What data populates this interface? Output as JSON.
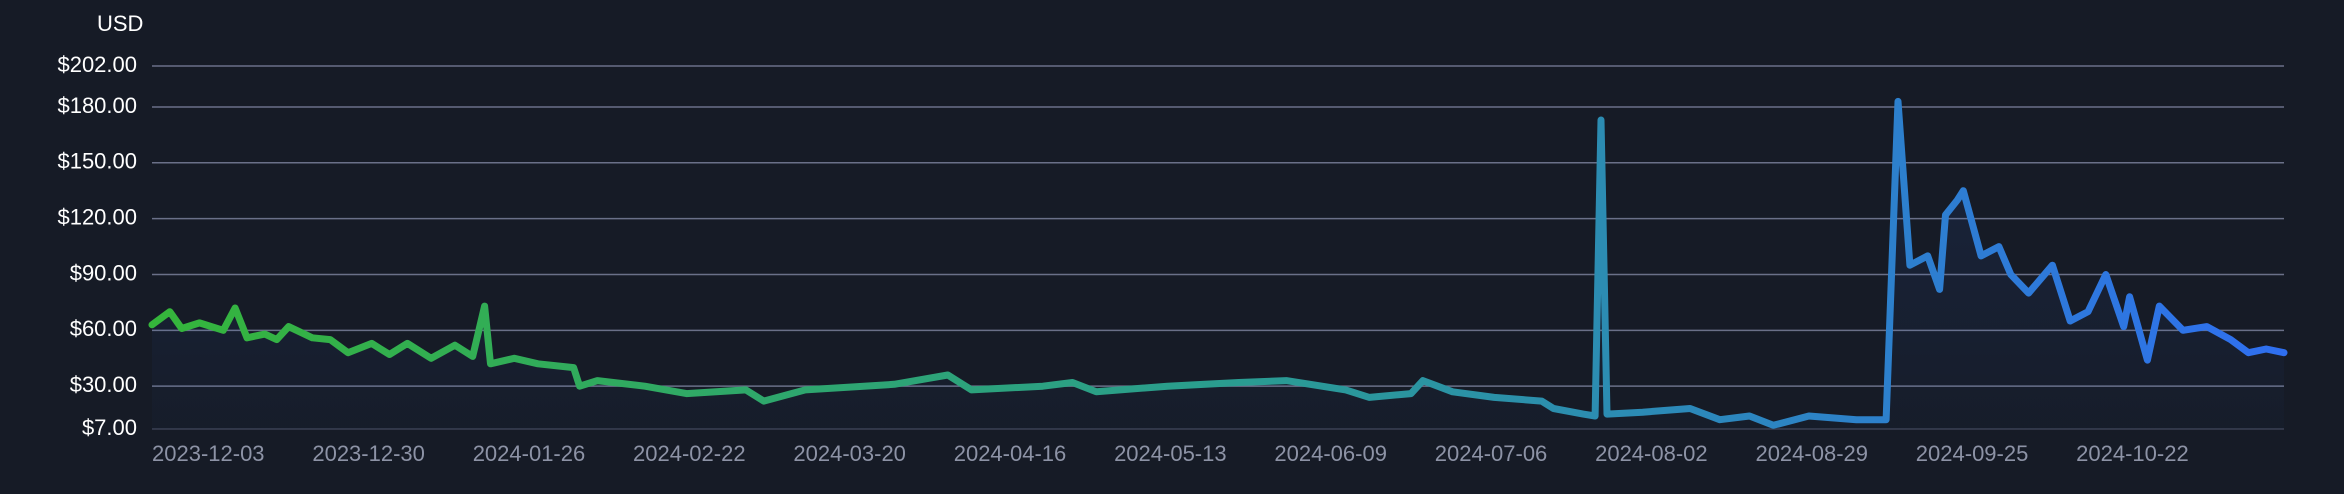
{
  "chart_data": {
    "type": "line",
    "y_axis_label": "USD",
    "x": [
      "2023-12-03",
      "2023-12-06",
      "2023-12-08",
      "2023-12-11",
      "2023-12-15",
      "2023-12-17",
      "2023-12-19",
      "2023-12-22",
      "2023-12-24",
      "2023-12-26",
      "2023-12-30",
      "2024-01-02",
      "2024-01-05",
      "2024-01-09",
      "2024-01-12",
      "2024-01-15",
      "2024-01-19",
      "2024-01-23",
      "2024-01-26",
      "2024-01-28",
      "2024-01-29",
      "2024-02-02",
      "2024-02-06",
      "2024-02-12",
      "2024-02-13",
      "2024-02-16",
      "2024-02-24",
      "2024-03-02",
      "2024-03-12",
      "2024-03-15",
      "2024-03-22",
      "2024-04-06",
      "2024-04-15",
      "2024-04-19",
      "2024-05-01",
      "2024-05-06",
      "2024-05-10",
      "2024-05-22",
      "2024-06-03",
      "2024-06-11",
      "2024-06-21",
      "2024-06-25",
      "2024-07-02",
      "2024-07-04",
      "2024-07-09",
      "2024-07-16",
      "2024-07-24",
      "2024-07-26",
      "2024-07-31",
      "2024-08-02",
      "2024-08-03",
      "2024-08-04",
      "2024-08-10",
      "2024-08-18",
      "2024-08-23",
      "2024-08-28",
      "2024-09-01",
      "2024-09-07",
      "2024-09-15",
      "2024-09-20",
      "2024-09-22",
      "2024-09-24",
      "2024-09-27",
      "2024-09-29",
      "2024-09-30",
      "2024-10-02",
      "2024-10-03",
      "2024-10-06",
      "2024-10-09",
      "2024-10-11",
      "2024-10-14",
      "2024-10-18",
      "2024-10-21",
      "2024-10-24",
      "2024-10-27",
      "2024-10-30",
      "2024-10-31",
      "2024-11-03",
      "2024-11-05",
      "2024-11-09",
      "2024-11-13",
      "2024-11-17",
      "2024-11-20",
      "2024-11-23",
      "2024-11-26"
    ],
    "series": [
      {
        "color_stops": [
          "#35b53b",
          "#2a9d8f",
          "#2f6ff0"
        ],
        "values": [
          63,
          70,
          61,
          64,
          60,
          72,
          56,
          58,
          55,
          62,
          56,
          55,
          48,
          53,
          47,
          53,
          45,
          52,
          46,
          73,
          42,
          45,
          42,
          40,
          30,
          33,
          30,
          26,
          28,
          22,
          28,
          31,
          36,
          28,
          30,
          32,
          27,
          30,
          32,
          33,
          28,
          24,
          26,
          33,
          27,
          24,
          22,
          18,
          15,
          14,
          173,
          15,
          16,
          18,
          12,
          14,
          9,
          14,
          12,
          12,
          183,
          95,
          100,
          82,
          122,
          130,
          135,
          100,
          105,
          90,
          80,
          95,
          65,
          70,
          90,
          62,
          78,
          44,
          73,
          60,
          62,
          55,
          48,
          50,
          48
        ]
      }
    ],
    "xlim": [
      "2023-12-03",
      "2024-11-26"
    ],
    "xticks": [
      "2023-12-03",
      "2023-12-30",
      "2024-01-26",
      "2024-02-22",
      "2024-03-20",
      "2024-04-16",
      "2024-05-13",
      "2024-06-09",
      "2024-07-06",
      "2024-08-02",
      "2024-08-29",
      "2024-09-25",
      "2024-10-22"
    ],
    "ylim": [
      7,
      202
    ],
    "yticks": [
      {
        "value": 7,
        "label": "$7.00"
      },
      {
        "value": 30,
        "label": "$30.00"
      },
      {
        "value": 60,
        "label": "$60.00"
      },
      {
        "value": 90,
        "label": "$90.00"
      },
      {
        "value": 120,
        "label": "$120.00"
      },
      {
        "value": 150,
        "label": "$150.00"
      },
      {
        "value": 180,
        "label": "$180.00"
      },
      {
        "value": 202,
        "label": "$202.00"
      }
    ],
    "grid": true
  }
}
